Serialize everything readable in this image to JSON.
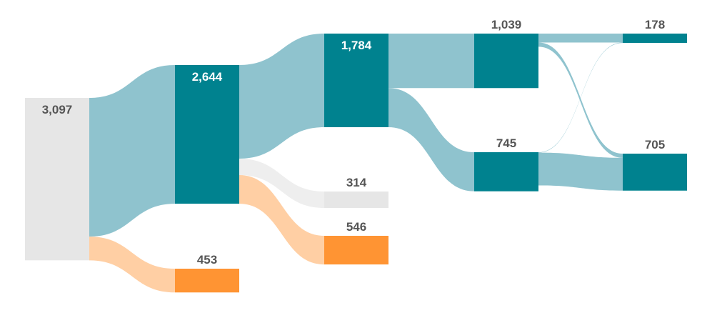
{
  "colors": {
    "node_primary": "#00828f",
    "node_neutral": "#e6e6e6",
    "node_orange": "#ff9433",
    "link_primary": "#8fc3ce",
    "link_neutral": "#eeeeee",
    "link_orange": "#ffcfa4",
    "label_dark": "#555555",
    "label_light": "#ffffff"
  },
  "chart_data": {
    "type": "sankey",
    "nodes": [
      {
        "id": "n0",
        "label": "3,097",
        "value": 3097,
        "style": "neutral"
      },
      {
        "id": "n1",
        "label": "2,644",
        "value": 2644,
        "style": "primary"
      },
      {
        "id": "n2",
        "label": "453",
        "value": 453,
        "style": "orange"
      },
      {
        "id": "n3",
        "label": "1,784",
        "value": 1784,
        "style": "primary"
      },
      {
        "id": "n4",
        "label": "314",
        "value": 314,
        "style": "neutral"
      },
      {
        "id": "n5",
        "label": "546",
        "value": 546,
        "style": "orange"
      },
      {
        "id": "n6",
        "label": "1,039",
        "value": 1039,
        "style": "primary"
      },
      {
        "id": "n7",
        "label": "745",
        "value": 745,
        "style": "primary"
      },
      {
        "id": "n8",
        "label": "178",
        "value": 178,
        "style": "primary"
      },
      {
        "id": "n9",
        "label": "705",
        "value": 705,
        "style": "primary"
      }
    ],
    "links": [
      {
        "source": "n0",
        "target": "n1",
        "value": 2644,
        "style": "primary"
      },
      {
        "source": "n0",
        "target": "n2",
        "value": 453,
        "style": "orange"
      },
      {
        "source": "n1",
        "target": "n3",
        "value": 1784,
        "style": "primary"
      },
      {
        "source": "n1",
        "target": "n4",
        "value": 314,
        "style": "neutral"
      },
      {
        "source": "n1",
        "target": "n5",
        "value": 546,
        "style": "orange"
      },
      {
        "source": "n3",
        "target": "n6",
        "value": 1039,
        "style": "primary"
      },
      {
        "source": "n3",
        "target": "n7",
        "value": 745,
        "style": "primary"
      },
      {
        "source": "n6",
        "target": "n8",
        "value": 170,
        "style": "primary"
      },
      {
        "source": "n6",
        "target": "n9",
        "value": 80,
        "style": "primary"
      },
      {
        "source": "n7",
        "target": "n8",
        "value": 8,
        "style": "primary"
      },
      {
        "source": "n7",
        "target": "n9",
        "value": 625,
        "style": "primary"
      }
    ]
  }
}
